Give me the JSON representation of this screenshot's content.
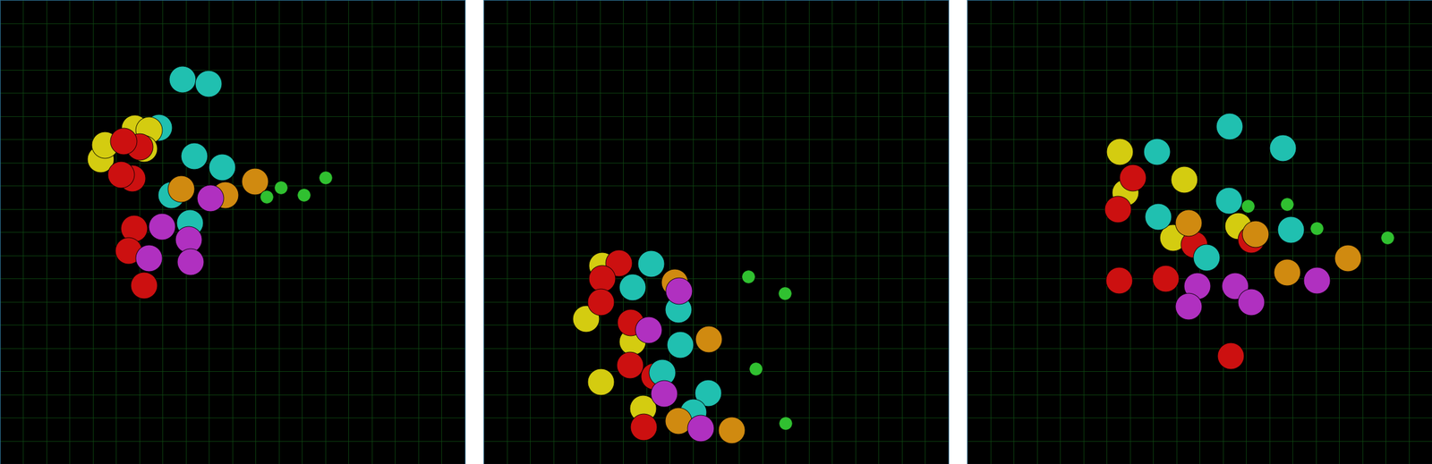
{
  "chart_data": [
    {
      "type": "scatter",
      "grid": true,
      "tick_labels": false,
      "xlim": [
        0,
        500
      ],
      "ylim": [
        500,
        0
      ],
      "xticks": [
        0,
        25,
        50,
        75,
        100,
        125,
        150,
        175,
        200,
        225,
        250,
        275,
        300,
        325,
        350,
        375,
        400,
        425,
        450,
        475,
        500
      ],
      "yticks": [
        0,
        25,
        50,
        75,
        100,
        125,
        150,
        175,
        200,
        225,
        250,
        275,
        300,
        325,
        350,
        375,
        400,
        425,
        450,
        475,
        500
      ],
      "series": [
        {
          "color": "#20c0b0",
          "marker": "o",
          "x": [
            196,
            224,
            171,
            209,
            239,
            184,
            204
          ],
          "values": [
            85,
            90,
            137,
            168,
            180,
            210,
            240
          ]
        },
        {
          "color": "#d4cc10",
          "marker": "o",
          "x": [
            108,
            113,
            145,
            160,
            155
          ],
          "values": [
            171,
            156,
            138,
            140,
            160
          ]
        },
        {
          "color": "#cc1010",
          "marker": "o",
          "x": [
            150,
            133,
            142,
            130,
            144,
            138,
            155
          ],
          "values": [
            158,
            152,
            192,
            188,
            246,
            270,
            307
          ]
        },
        {
          "color": "#d08a10",
          "marker": "o",
          "x": [
            195,
            274,
            242
          ],
          "values": [
            203,
            195,
            210
          ]
        },
        {
          "color": "#b030c0",
          "marker": "o",
          "x": [
            226,
            174,
            203,
            160,
            205
          ],
          "values": [
            213,
            244,
            258,
            278,
            282
          ]
        },
        {
          "color": "#30c030",
          "marker": ".",
          "x": [
            302,
            327,
            350,
            287
          ],
          "values": [
            202,
            210,
            191,
            212
          ]
        }
      ]
    },
    {
      "type": "scatter",
      "grid": true,
      "tick_labels": false,
      "xlim": [
        0,
        500
      ],
      "ylim": [
        500,
        0
      ],
      "xticks": [
        0,
        25,
        50,
        75,
        100,
        125,
        150,
        175,
        200,
        225,
        250,
        275,
        300,
        325,
        350,
        375,
        400,
        425,
        450,
        475,
        500
      ],
      "yticks": [
        0,
        25,
        50,
        75,
        100,
        125,
        150,
        175,
        200,
        225,
        250,
        275,
        300,
        325,
        350,
        375,
        400,
        425,
        450,
        475,
        500
      ],
      "series": [
        {
          "color": "#d4cc10",
          "marker": "o",
          "x": [
            127,
            110,
            160,
            126,
            171
          ],
          "values": [
            286,
            343,
            368,
            411,
            440
          ]
        },
        {
          "color": "#cc1010",
          "marker": "o",
          "x": [
            145,
            127,
            126,
            158,
            157,
            183,
            172
          ],
          "values": [
            283,
            300,
            325,
            347,
            393,
            405,
            460
          ]
        },
        {
          "color": "#20c0b0",
          "marker": "o",
          "x": [
            180,
            160,
            209,
            211,
            192,
            241,
            225
          ],
          "values": [
            284,
            309,
            333,
            371,
            401,
            423,
            444
          ]
        },
        {
          "color": "#d08a10",
          "marker": "o",
          "x": [
            205,
            242,
            209,
            267
          ],
          "values": [
            304,
            365,
            453,
            463
          ]
        },
        {
          "color": "#b030c0",
          "marker": "o",
          "x": [
            210,
            177,
            194,
            233
          ],
          "values": [
            313,
            355,
            424,
            461
          ]
        },
        {
          "color": "#30c030",
          "marker": ".",
          "x": [
            285,
            324,
            293,
            325
          ],
          "values": [
            298,
            316,
            397,
            456
          ]
        }
      ]
    },
    {
      "type": "scatter",
      "grid": true,
      "tick_labels": false,
      "xlim": [
        0,
        500
      ],
      "ylim": [
        500,
        0
      ],
      "xticks": [
        0,
        25,
        50,
        75,
        100,
        125,
        150,
        175,
        200,
        225,
        250,
        275,
        300,
        325,
        350,
        375,
        400,
        425,
        450,
        475,
        500
      ],
      "yticks": [
        0,
        25,
        50,
        75,
        100,
        125,
        150,
        175,
        200,
        225,
        250,
        275,
        300,
        325,
        350,
        375,
        400,
        425,
        450,
        475,
        500
      ],
      "series": [
        {
          "color": "#d4cc10",
          "marker": "o",
          "x": [
            164,
            233,
            170,
            291,
            221
          ],
          "values": [
            163,
            193,
            207,
            243,
            256
          ]
        },
        {
          "color": "#cc1010",
          "marker": "o",
          "x": [
            178,
            162,
            244,
            305,
            163,
            213,
            283
          ],
          "values": [
            191,
            225,
            263,
            258,
            302,
            300,
            383
          ]
        },
        {
          "color": "#20c0b0",
          "marker": "o",
          "x": [
            204,
            282,
            339,
            281,
            205,
            348,
            257
          ],
          "values": [
            163,
            136,
            159,
            216,
            233,
            247,
            277
          ]
        },
        {
          "color": "#d08a10",
          "marker": "o",
          "x": [
            238,
            310,
            344,
            409
          ],
          "values": [
            240,
            252,
            293,
            278
          ]
        },
        {
          "color": "#b030c0",
          "marker": "o",
          "x": [
            247,
            288,
            238,
            305,
            376
          ],
          "values": [
            308,
            308,
            330,
            325,
            302
          ]
        },
        {
          "color": "#30c030",
          "marker": ".",
          "x": [
            302,
            344,
            376,
            452
          ],
          "values": [
            222,
            220,
            246,
            256
          ]
        }
      ]
    }
  ]
}
